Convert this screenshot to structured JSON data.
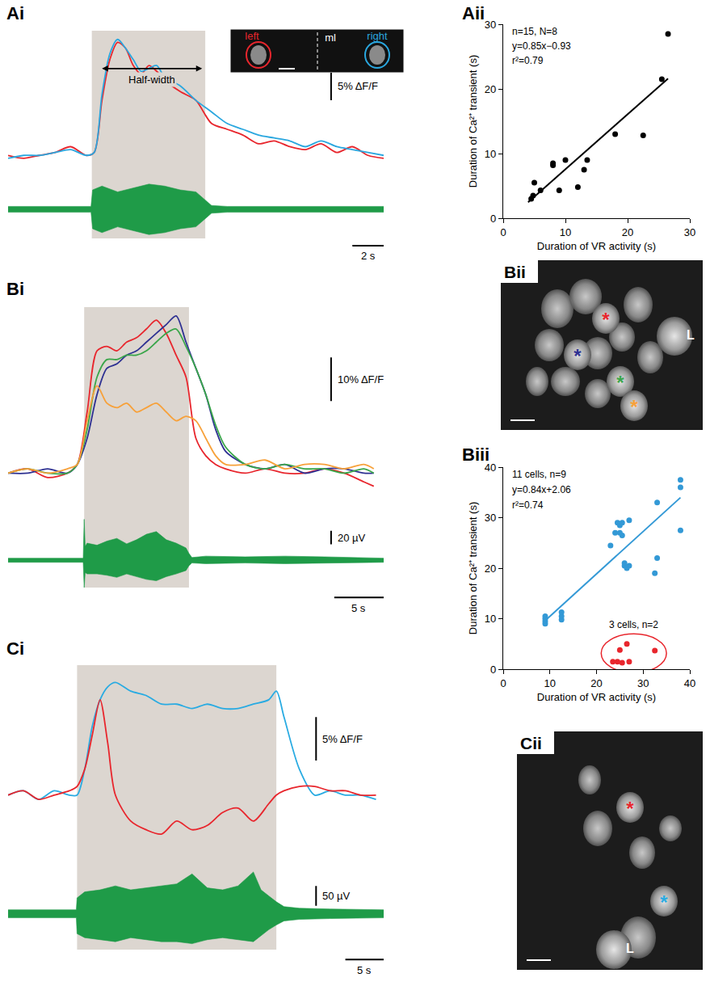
{
  "chart_data": [
    {
      "panel": "Ai",
      "type": "line",
      "tick_labels": false,
      "xlim": [
        0,
        24
      ],
      "ylim": [
        -2,
        22
      ],
      "shade": [
        5.35,
        12.6
      ],
      "x": [
        0,
        1,
        2,
        3,
        4,
        5,
        5.5,
        6,
        6.5,
        7,
        7.5,
        8,
        8.5,
        9,
        9.5,
        10,
        11,
        12,
        13,
        14,
        15,
        16,
        17,
        18,
        19,
        20,
        21,
        22,
        23,
        24
      ],
      "series": [
        {
          "name": "left",
          "color": "#e8262d",
          "values": [
            0.5,
            0,
            0.5,
            1,
            2,
            0.5,
            1,
            10,
            17,
            20,
            19,
            16,
            14.5,
            16,
            15,
            13.5,
            11.5,
            10,
            6,
            5,
            4,
            2.5,
            3,
            2,
            1.5,
            2.5,
            1,
            2,
            0.5,
            0
          ]
        },
        {
          "name": "right",
          "color": "#2aa7df",
          "values": [
            0,
            0.5,
            0.5,
            1,
            1.5,
            0.5,
            1,
            11,
            18,
            20.5,
            19,
            17,
            15,
            15.5,
            16,
            14,
            12.5,
            10,
            8,
            6,
            5,
            4,
            3.5,
            3,
            2,
            3,
            2,
            1.5,
            1,
            0.5
          ]
        }
      ],
      "midline_label": "ml",
      "half_width": {
        "text": "Half-width",
        "x": [
          6.0,
          12.4
        ],
        "y": 15.5
      },
      "vr": {
        "color": "#1f9b48",
        "ylim": [
          -15,
          15
        ],
        "x": [
          0,
          5.3,
          5.4,
          6,
          7,
          8,
          9,
          10,
          11,
          12,
          12.6,
          13,
          14,
          24
        ],
        "upper": [
          1.5,
          1.5,
          10,
          12,
          9,
          11,
          13,
          12,
          10,
          9,
          5,
          2,
          1.5,
          1.5
        ],
        "lower": [
          -1.5,
          -1.5,
          -10,
          -12,
          -9,
          -11,
          -13,
          -12,
          -10,
          -9,
          -5,
          -2,
          -1.5,
          -1.5
        ]
      },
      "scale_bars": [
        {
          "axis": "y",
          "value": 5,
          "label": "5% ΔF/F"
        },
        {
          "axis": "x",
          "value": 2,
          "label": "2 s"
        }
      ]
    },
    {
      "panel": "Aii",
      "type": "scatter",
      "grid": false,
      "xlim": [
        0,
        30
      ],
      "ylim": [
        0,
        30
      ],
      "xticks": [
        0,
        10,
        20,
        30
      ],
      "yticks": [
        0,
        10,
        20,
        30
      ],
      "x_label": "Duration of VR activity (s)",
      "y_label": "Duration of Ca²⁺ transient (s)",
      "series": [
        {
          "color": "#000000",
          "annotation": "n=15, N=8",
          "x": [
            4.5,
            4.8,
            5,
            6,
            8,
            8,
            9,
            10,
            12,
            13,
            13.5,
            18,
            22.5,
            25.5,
            26.5
          ],
          "values": [
            3.0,
            3.5,
            5.5,
            4.3,
            8.5,
            8.2,
            4.3,
            9,
            4.8,
            7.5,
            9,
            13,
            12.8,
            21.5,
            28.5
          ],
          "fit": {
            "slope": 0.85,
            "intercept": -0.93,
            "x": [
              4,
              26.5
            ],
            "equation": "y=0.85x−0.93",
            "r2": "r²=0.79"
          }
        }
      ]
    },
    {
      "panel": "Bi",
      "type": "line",
      "tick_labels": false,
      "xlim": [
        0,
        38
      ],
      "ylim": [
        -5,
        38
      ],
      "shade": [
        7.7,
        18.3
      ],
      "x": [
        0,
        2,
        4,
        6,
        7,
        8,
        9,
        10,
        11,
        12,
        13,
        14,
        15,
        16,
        17,
        18,
        19,
        20,
        21,
        22,
        24,
        26,
        28,
        30,
        32,
        34,
        36,
        37
      ],
      "series": [
        {
          "color": "#e8262d",
          "values": [
            0,
            1,
            -1,
            0,
            2,
            14,
            28,
            29,
            28,
            30,
            31,
            33,
            35,
            32,
            27,
            22,
            8,
            4,
            2,
            1,
            0,
            1,
            0,
            0,
            1,
            0,
            -2,
            -3
          ]
        },
        {
          "color": "#2e3192",
          "values": [
            0,
            0,
            1,
            0,
            2,
            8,
            18,
            24,
            25,
            27,
            28,
            30,
            32,
            34,
            36,
            30,
            24,
            18,
            10,
            5,
            2,
            1,
            2,
            0,
            1,
            1,
            0,
            0
          ]
        },
        {
          "color": "#3aa64a",
          "values": [
            0,
            1,
            0,
            0,
            2,
            10,
            22,
            26,
            26,
            27,
            27,
            28,
            30,
            32,
            33,
            29,
            24,
            18,
            11,
            6,
            2,
            1,
            2,
            1,
            1,
            0,
            1,
            0
          ]
        },
        {
          "color": "#f7a13a",
          "values": [
            0,
            1,
            0,
            1,
            2,
            12,
            20,
            16,
            15,
            16,
            14,
            15,
            16,
            14,
            12,
            13,
            12,
            8,
            4,
            2,
            2,
            3,
            1,
            2,
            2,
            1,
            2,
            1
          ]
        }
      ],
      "vr": {
        "color": "#1f9b48",
        "ylim": [
          -40,
          75
        ],
        "x": [
          0,
          7.6,
          7.7,
          7.8,
          8,
          9,
          10,
          11,
          12,
          13,
          14,
          15,
          16,
          17,
          18,
          18.3,
          18.6,
          20,
          24,
          28,
          32,
          38
        ],
        "upper": [
          3,
          3,
          60,
          20,
          25,
          22,
          28,
          32,
          24,
          30,
          38,
          42,
          30,
          25,
          18,
          10,
          4,
          6,
          5,
          6,
          5,
          3
        ],
        "lower": [
          -3,
          -3,
          -40,
          -18,
          -20,
          -20,
          -22,
          -25,
          -20,
          -24,
          -28,
          -30,
          -24,
          -20,
          -15,
          -8,
          -4,
          -5,
          -4,
          -5,
          -4,
          -3
        ]
      },
      "scale_bars": [
        {
          "axis": "y",
          "value": 10,
          "label": "10% ΔF/F"
        },
        {
          "axis": "y2",
          "value": 20,
          "label": "20 µV"
        },
        {
          "axis": "x",
          "value": 5,
          "label": "5 s"
        }
      ]
    },
    {
      "panel": "Biii",
      "type": "scatter",
      "grid": false,
      "xlim": [
        0,
        40
      ],
      "ylim": [
        0,
        40
      ],
      "xticks": [
        0,
        10,
        20,
        30,
        40
      ],
      "yticks": [
        0,
        10,
        20,
        30,
        40
      ],
      "x_label": "Duration of VR activity (s)",
      "y_label": "Duration of Ca²⁺ transient (s)",
      "series": [
        {
          "color": "#3399d6",
          "annotation": "11 cells, n=9",
          "x": [
            9,
            9,
            9,
            9,
            12.5,
            12.5,
            12.5,
            23,
            24,
            24.5,
            25,
            25,
            25.5,
            25.5,
            26,
            26,
            26.5,
            27,
            27,
            33,
            33,
            32.5,
            38,
            38,
            38
          ],
          "values": [
            9,
            9.5,
            10,
            10.5,
            9.8,
            10.5,
            11.3,
            24.5,
            27,
            29,
            28.5,
            27,
            29,
            26.5,
            20.5,
            21,
            20,
            29.5,
            20.5,
            33,
            22,
            19,
            37.5,
            36,
            27.5
          ],
          "fit": {
            "slope": 0.84,
            "intercept": 2.06,
            "x": [
              9,
              38
            ],
            "equation": "y=0.84x+2.06",
            "r2": "r²=0.74"
          }
        },
        {
          "color": "#e8262d",
          "annotation": "3 cells, n=2",
          "marker": "circled",
          "x": [
            23.5,
            24.5,
            25,
            25.5,
            26.5,
            27,
            32.5
          ],
          "values": [
            1.5,
            1.5,
            3.8,
            1.3,
            5,
            1.5,
            3.7
          ]
        }
      ]
    },
    {
      "panel": "Ci",
      "type": "line",
      "tick_labels": false,
      "xlim": [
        0,
        49
      ],
      "ylim": [
        -7,
        15
      ],
      "shade": [
        9,
        35
      ],
      "x": [
        0,
        2,
        4,
        6,
        8,
        9,
        10,
        11,
        12,
        13,
        14,
        16,
        18,
        20,
        22,
        24,
        26,
        28,
        30,
        32,
        34,
        35,
        36,
        38,
        40,
        42,
        44,
        46,
        48
      ],
      "series": [
        {
          "color": "#29abe2",
          "values": [
            0,
            0.5,
            -0.5,
            0.5,
            0,
            0,
            3,
            8,
            11,
            12.5,
            13,
            12,
            11.5,
            10.5,
            10.5,
            10,
            10.5,
            10,
            10,
            10.5,
            11,
            12,
            9,
            3,
            0,
            0.5,
            0,
            0,
            -0.5
          ]
        },
        {
          "color": "#e8262d",
          "values": [
            0,
            0.5,
            -0.5,
            0,
            0.5,
            1,
            3,
            7,
            11,
            6,
            0,
            -3,
            -4,
            -4.5,
            -3,
            -4,
            -3.5,
            -2,
            -1.5,
            -3,
            -1,
            0,
            0.5,
            1,
            1,
            0.5,
            0.5,
            0,
            0
          ]
        }
      ],
      "vr": {
        "color": "#1f9b48",
        "ylim": [
          -90,
          110
        ],
        "x": [
          0,
          8.9,
          9,
          10,
          12,
          14,
          16,
          18,
          20,
          22,
          24,
          26,
          28,
          30,
          32,
          33,
          34,
          35,
          36,
          38,
          42,
          49
        ],
        "upper": [
          10,
          10,
          40,
          55,
          60,
          70,
          60,
          65,
          70,
          75,
          100,
          65,
          60,
          70,
          105,
          60,
          45,
          30,
          18,
          14,
          12,
          10
        ],
        "lower": [
          -10,
          -10,
          -50,
          -60,
          -65,
          -70,
          -60,
          -65,
          -70,
          -70,
          -75,
          -65,
          -60,
          -65,
          -70,
          -55,
          -40,
          -28,
          -18,
          -14,
          -12,
          -10
        ]
      },
      "scale_bars": [
        {
          "axis": "y",
          "value": 5,
          "label": "5% ΔF/F"
        },
        {
          "axis": "y2",
          "value": 50,
          "label": "50 µV"
        },
        {
          "axis": "x",
          "value": 5,
          "label": "5 s"
        }
      ]
    }
  ],
  "images": [
    {
      "panel": "Bii",
      "labels": [
        {
          "text": "*",
          "color": "#e8262d"
        },
        {
          "text": "*",
          "color": "#2e3192"
        },
        {
          "text": "*",
          "color": "#3aa64a"
        },
        {
          "text": "*",
          "color": "#f7a13a"
        },
        {
          "text": "L",
          "color": "#ffffff"
        }
      ]
    },
    {
      "panel": "Cii",
      "labels": [
        {
          "text": "*",
          "color": "#e8262d"
        },
        {
          "text": "*",
          "color": "#29abe2"
        },
        {
          "text": "L",
          "color": "#ffffff"
        }
      ]
    }
  ]
}
